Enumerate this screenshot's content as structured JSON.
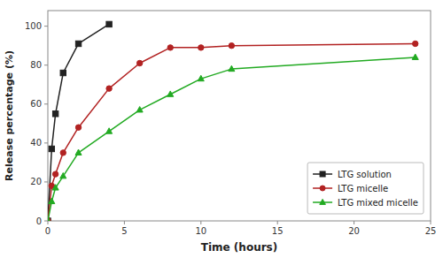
{
  "chart_data": {
    "type": "line",
    "x_label": "Time (hours)",
    "y_label": "Release percentage (%)",
    "series": [
      {
        "name": "LTG solution",
        "color": "#222222",
        "marker": "square",
        "x": [
          0,
          0.25,
          0.5,
          1,
          2,
          4
        ],
        "values": [
          0,
          37,
          55,
          76,
          91,
          101
        ]
      },
      {
        "name": "LTG micelle",
        "color": "#b22222",
        "marker": "circle",
        "x": [
          0,
          0.25,
          0.5,
          1,
          2,
          4,
          6,
          8,
          10,
          12,
          24
        ],
        "values": [
          0,
          18,
          24,
          35,
          48,
          68,
          81,
          89,
          89,
          90,
          91
        ]
      },
      {
        "name": "LTG mixed micelle",
        "color": "#22aa22",
        "marker": "triangle",
        "x": [
          0,
          0.25,
          0.5,
          1,
          2,
          4,
          6,
          8,
          10,
          12,
          24
        ],
        "values": [
          0,
          10,
          17,
          23,
          35,
          46,
          57,
          65,
          73,
          78,
          84
        ]
      }
    ],
    "xlim": [
      0,
      25
    ],
    "ylim": [
      0,
      108
    ],
    "xticks": [
      0,
      5,
      10,
      15,
      20,
      25
    ],
    "yticks": [
      0,
      20,
      40,
      60,
      80,
      100
    ],
    "grid": false,
    "legend": "lower right"
  }
}
